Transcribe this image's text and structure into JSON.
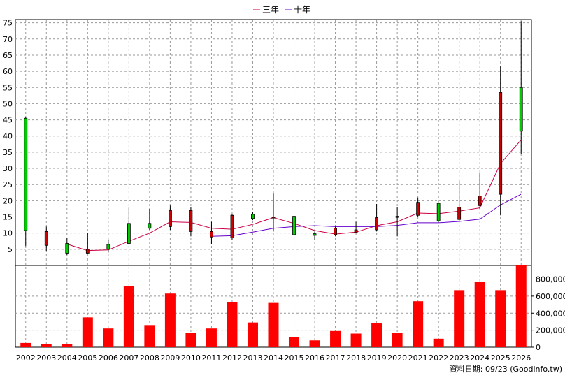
{
  "chart_data": {
    "type": "candlestick",
    "legend": [
      {
        "name": "三年",
        "color": "#cc0044"
      },
      {
        "name": "十年",
        "color": "#6600cc"
      }
    ],
    "source_note": "資料日期: 09/23 (Goodinfo.tw)",
    "categories": [
      "2002",
      "2003",
      "2004",
      "2005",
      "2006",
      "2007",
      "2008",
      "2009",
      "2010",
      "2011",
      "2012",
      "2013",
      "2014",
      "2015",
      "2016",
      "2017",
      "2018",
      "2019",
      "2020",
      "2021",
      "2022",
      "2023",
      "2024",
      "2025",
      "2026"
    ],
    "price_axis": {
      "min": 0,
      "max": 76,
      "ticks": [
        5,
        10,
        15,
        20,
        25,
        30,
        35,
        40,
        45,
        50,
        55,
        60,
        65,
        70,
        75
      ]
    },
    "volume_axis": {
      "min": 0,
      "max": 960000,
      "ticks": [
        0,
        200000,
        400000,
        600000,
        800000
      ],
      "tick_labels": [
        "0",
        "200,000",
        "400,000",
        "600,000",
        "800,000"
      ]
    },
    "candles": [
      {
        "open": 10.8,
        "close": 45.5,
        "high": 46,
        "low": 6
      },
      {
        "open": 10.5,
        "close": 6.2,
        "high": 12,
        "low": 4.5
      },
      {
        "open": 3.8,
        "close": 6.8,
        "high": 8.5,
        "low": 3.2
      },
      {
        "open": 5,
        "close": 3.8,
        "high": 10,
        "low": 3.5
      },
      {
        "open": 5,
        "close": 6.5,
        "high": 8,
        "low": 4
      },
      {
        "open": 6.8,
        "close": 13,
        "high": 18,
        "low": 6.5
      },
      {
        "open": 11.5,
        "close": 13,
        "high": 17.5,
        "low": 11
      },
      {
        "open": 17,
        "close": 12,
        "high": 18.5,
        "low": 11
      },
      {
        "open": 17,
        "close": 10.5,
        "high": 18,
        "low": 9
      },
      {
        "open": 10.5,
        "close": 8.8,
        "high": 13.5,
        "low": 6.5
      },
      {
        "open": 15.5,
        "close": 8.5,
        "high": 16,
        "low": 8
      },
      {
        "open": 14.5,
        "close": 15.8,
        "high": 16.5,
        "low": 14
      },
      {
        "open": 15,
        "close": 14.7,
        "high": 22.2,
        "low": 10.5
      },
      {
        "open": 9.5,
        "close": 15.2,
        "high": 15.5,
        "low": 8
      },
      {
        "open": 9.3,
        "close": 9.8,
        "high": 10.5,
        "low": 8
      },
      {
        "open": 11.5,
        "close": 9.5,
        "high": 12,
        "low": 9
      },
      {
        "open": 11,
        "close": 10.2,
        "high": 13.5,
        "low": 10
      },
      {
        "open": 14.8,
        "close": 11,
        "high": 19,
        "low": 10.5
      },
      {
        "open": 15,
        "close": 15.2,
        "high": 18,
        "low": 9
      },
      {
        "open": 19.5,
        "close": 15.5,
        "high": 21,
        "low": 15
      },
      {
        "open": 13.8,
        "close": 19.2,
        "high": 19.5,
        "low": 13.5
      },
      {
        "open": 18,
        "close": 14.2,
        "high": 26.2,
        "low": 13.5
      },
      {
        "open": 21.5,
        "close": 18.5,
        "high": 28.5,
        "low": 17.5
      },
      {
        "open": 53.5,
        "close": 22,
        "high": 61.5,
        "low": 15.5
      },
      {
        "open": 41.5,
        "close": 55,
        "high": 75.5,
        "low": 34.5
      }
    ],
    "series": [
      {
        "name": "三年",
        "values": [
          null,
          null,
          6.6,
          4.6,
          4.8,
          7.5,
          10,
          13.5,
          13.3,
          11.5,
          11.2,
          12.7,
          14.8,
          13,
          10.8,
          9.7,
          10.3,
          12.3,
          13.5,
          16.2,
          16,
          16.8,
          17.8,
          31.5,
          38.8
        ]
      },
      {
        "name": "十年",
        "values": [
          null,
          null,
          null,
          null,
          null,
          null,
          null,
          null,
          null,
          9,
          9.2,
          10.3,
          11.5,
          12,
          12.3,
          12,
          12,
          12,
          12.4,
          13.2,
          13.2,
          13.6,
          14.3,
          18.7,
          22
        ]
      }
    ],
    "volume": [
      50000,
      40000,
      40000,
      350000,
      220000,
      720000,
      260000,
      630000,
      170000,
      220000,
      530000,
      290000,
      520000,
      120000,
      80000,
      190000,
      160000,
      280000,
      170000,
      540000,
      100000,
      670000,
      770000,
      670000,
      960000
    ]
  }
}
